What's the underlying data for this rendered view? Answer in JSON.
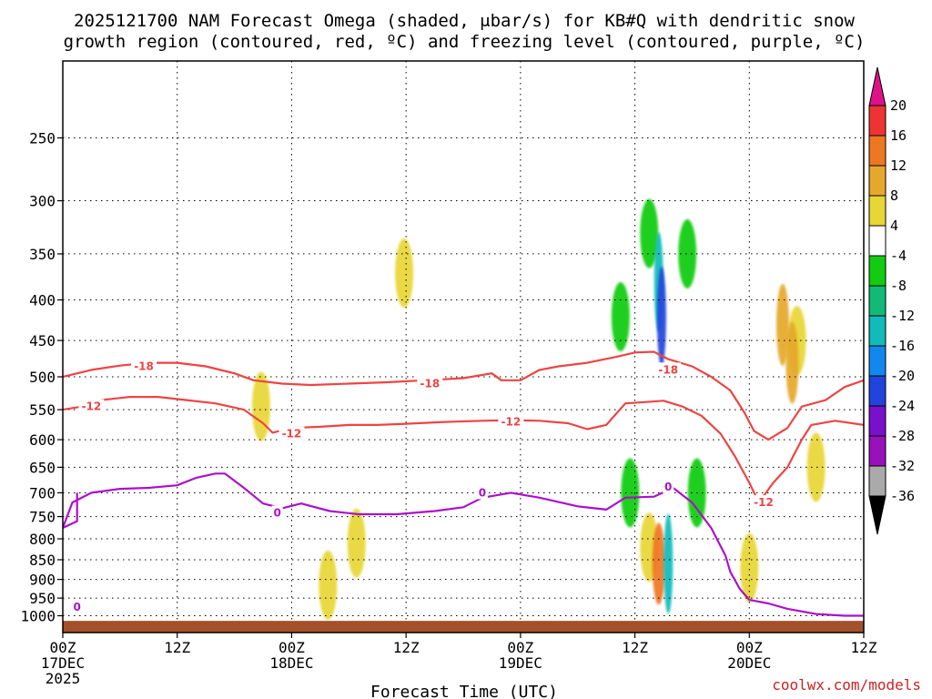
{
  "chart_data": {
    "type": "heatmap",
    "title_lines": [
      "2025121700 NAM Forecast Omega (shaded, μbar/s) for KB#Q with dendritic snow",
      "growth region (contoured, red, ºC) and freezing level (contoured, purple, ºC)"
    ],
    "xlabel": "Forecast Time (UTC)",
    "ylabel": "",
    "y_axis": {
      "scale": "log",
      "direction": "inverted",
      "min": 200,
      "max": 1050
    },
    "y_ticks": [
      250,
      300,
      350,
      400,
      450,
      500,
      550,
      600,
      650,
      700,
      750,
      800,
      850,
      900,
      950,
      1000
    ],
    "x_range_hours": [
      0,
      84
    ],
    "x_ticks": [
      {
        "hour": 0,
        "lines": [
          "00Z",
          "17DEC",
          "2025"
        ]
      },
      {
        "hour": 12,
        "lines": [
          "12Z"
        ]
      },
      {
        "hour": 24,
        "lines": [
          "00Z",
          "18DEC"
        ]
      },
      {
        "hour": 36,
        "lines": [
          "12Z"
        ]
      },
      {
        "hour": 48,
        "lines": [
          "00Z",
          "19DEC"
        ]
      },
      {
        "hour": 60,
        "lines": [
          "12Z"
        ]
      },
      {
        "hour": 72,
        "lines": [
          "00Z",
          "20DEC"
        ]
      },
      {
        "hour": 84,
        "lines": [
          "12Z"
        ]
      }
    ],
    "grid": true,
    "colorbar": {
      "levels": [
        20,
        16,
        12,
        8,
        4,
        -4,
        -8,
        -12,
        -16,
        -20,
        -24,
        -28,
        -32,
        -36
      ],
      "colors": [
        "#dd1188",
        "#ee3333",
        "#ee7722",
        "#e6a82c",
        "#e8d634",
        "#ffffff",
        "#11cc11",
        "#11bb77",
        "#11bbbb",
        "#1188ee",
        "#2244dd",
        "#7711cc",
        "#9911bb",
        "#aaaaaa",
        "#000000"
      ],
      "position": "right"
    },
    "omega_blobs": [
      {
        "hour": 35.8,
        "p": 370,
        "value": 5
      },
      {
        "hour": 20.8,
        "p": 545,
        "value": 5
      },
      {
        "hour": 30.8,
        "p": 810,
        "value": 5
      },
      {
        "hour": 27.8,
        "p": 915,
        "value": 4
      },
      {
        "hour": 77,
        "p": 450,
        "value": 6
      },
      {
        "hour": 75.5,
        "p": 430,
        "value": 10
      },
      {
        "hour": 76.5,
        "p": 480,
        "value": 9
      },
      {
        "hour": 79,
        "p": 650,
        "value": 5
      },
      {
        "hour": 72,
        "p": 870,
        "value": 5
      },
      {
        "hour": 58.5,
        "p": 420,
        "value": -6
      },
      {
        "hour": 61.5,
        "p": 330,
        "value": -7
      },
      {
        "hour": 62.5,
        "p": 380,
        "value": -14
      },
      {
        "hour": 62.8,
        "p": 420,
        "value": -24
      },
      {
        "hour": 65.5,
        "p": 350,
        "value": -6
      },
      {
        "hour": 66.5,
        "p": 700,
        "value": -7
      },
      {
        "hour": 59.5,
        "p": 700,
        "value": -6
      },
      {
        "hour": 61.5,
        "p": 820,
        "value": 5
      },
      {
        "hour": 62.5,
        "p": 860,
        "value": 12
      },
      {
        "hour": 63.5,
        "p": 860,
        "value": -14
      }
    ],
    "contours": [
      {
        "name": "-18 C isotherm",
        "color": "#ee4444",
        "labels": [
          {
            "text": "-18",
            "hour": 8.5,
            "p": 485
          },
          {
            "text": "-18",
            "hour": 38.5,
            "p": 510
          },
          {
            "text": "-18",
            "hour": 63.5,
            "p": 490
          }
        ],
        "points": [
          [
            0,
            500
          ],
          [
            3,
            490
          ],
          [
            6,
            484
          ],
          [
            9,
            480
          ],
          [
            12,
            480
          ],
          [
            15,
            485
          ],
          [
            18,
            495
          ],
          [
            20,
            505
          ],
          [
            23,
            510
          ],
          [
            26,
            512
          ],
          [
            30,
            510
          ],
          [
            34,
            508
          ],
          [
            38,
            505
          ],
          [
            42,
            502
          ],
          [
            45,
            495
          ],
          [
            46,
            505
          ],
          [
            48,
            505
          ],
          [
            50,
            490
          ],
          [
            52,
            485
          ],
          [
            55,
            480
          ],
          [
            58,
            472
          ],
          [
            60,
            466
          ],
          [
            62,
            465
          ],
          [
            63.5,
            475
          ],
          [
            66,
            485
          ],
          [
            68,
            500
          ],
          [
            70,
            520
          ],
          [
            71.5,
            555
          ],
          [
            72.5,
            585
          ],
          [
            74,
            600
          ],
          [
            76,
            580
          ],
          [
            77.5,
            545
          ],
          [
            80,
            535
          ],
          [
            82,
            515
          ],
          [
            84,
            505
          ]
        ]
      },
      {
        "name": "-12 C isotherm",
        "color": "#ee4444",
        "labels": [
          {
            "text": "-12",
            "hour": 3,
            "p": 545
          },
          {
            "text": "-12",
            "hour": 24,
            "p": 590
          },
          {
            "text": "-12",
            "hour": 47,
            "p": 570
          },
          {
            "text": "-12",
            "hour": 73.5,
            "p": 720
          }
        ],
        "points": [
          [
            0,
            550
          ],
          [
            2,
            545
          ],
          [
            4,
            535
          ],
          [
            7,
            530
          ],
          [
            10,
            530
          ],
          [
            13,
            535
          ],
          [
            16,
            540
          ],
          [
            19,
            550
          ],
          [
            21,
            572
          ],
          [
            22,
            588
          ],
          [
            24,
            580
          ],
          [
            27,
            578
          ],
          [
            30,
            575
          ],
          [
            33,
            575
          ],
          [
            36,
            573
          ],
          [
            40,
            570
          ],
          [
            44,
            568
          ],
          [
            47,
            567
          ],
          [
            50,
            568
          ],
          [
            53,
            572
          ],
          [
            55,
            582
          ],
          [
            57,
            575
          ],
          [
            59,
            540
          ],
          [
            61,
            538
          ],
          [
            63,
            536
          ],
          [
            65,
            545
          ],
          [
            67,
            560
          ],
          [
            69,
            590
          ],
          [
            70.5,
            630
          ],
          [
            72,
            680
          ],
          [
            73,
            720
          ],
          [
            74.5,
            680
          ],
          [
            76,
            650
          ],
          [
            77.5,
            600
          ],
          [
            78.5,
            575
          ],
          [
            81,
            568
          ],
          [
            84,
            575
          ]
        ]
      },
      {
        "name": "0 C freezing level",
        "color": "#aa11cc",
        "labels": [
          {
            "text": "0",
            "hour": 22.5,
            "p": 742
          },
          {
            "text": "0",
            "hour": 44,
            "p": 700
          },
          {
            "text": "0",
            "hour": 63.5,
            "p": 688
          },
          {
            "text": "0",
            "hour": 1.5,
            "p": 975
          }
        ],
        "points": [
          [
            1.5,
            700
          ],
          [
            1.5,
            760
          ],
          [
            0,
            775
          ],
          [
            1,
            720
          ],
          [
            3,
            700
          ],
          [
            6,
            692
          ],
          [
            9,
            690
          ],
          [
            12,
            685
          ],
          [
            14,
            670
          ],
          [
            16,
            662
          ],
          [
            17,
            662
          ],
          [
            19,
            690
          ],
          [
            21,
            722
          ],
          [
            23,
            732
          ],
          [
            25,
            722
          ],
          [
            28,
            738
          ],
          [
            31,
            745
          ],
          [
            35,
            745
          ],
          [
            39,
            738
          ],
          [
            42,
            730
          ],
          [
            44,
            710
          ],
          [
            47,
            700
          ],
          [
            50,
            710
          ],
          [
            54,
            728
          ],
          [
            57,
            735
          ],
          [
            59,
            710
          ],
          [
            62,
            708
          ],
          [
            64,
            690
          ],
          [
            66,
            720
          ],
          [
            68,
            775
          ],
          [
            69.5,
            840
          ],
          [
            70,
            880
          ],
          [
            71,
            925
          ],
          [
            72,
            955
          ],
          [
            74,
            965
          ],
          [
            76,
            980
          ],
          [
            79,
            995
          ],
          [
            82,
            1000
          ],
          [
            84,
            1000
          ]
        ]
      }
    ],
    "terrain_top_p": 1015,
    "credit": "coolwx.com/models"
  }
}
